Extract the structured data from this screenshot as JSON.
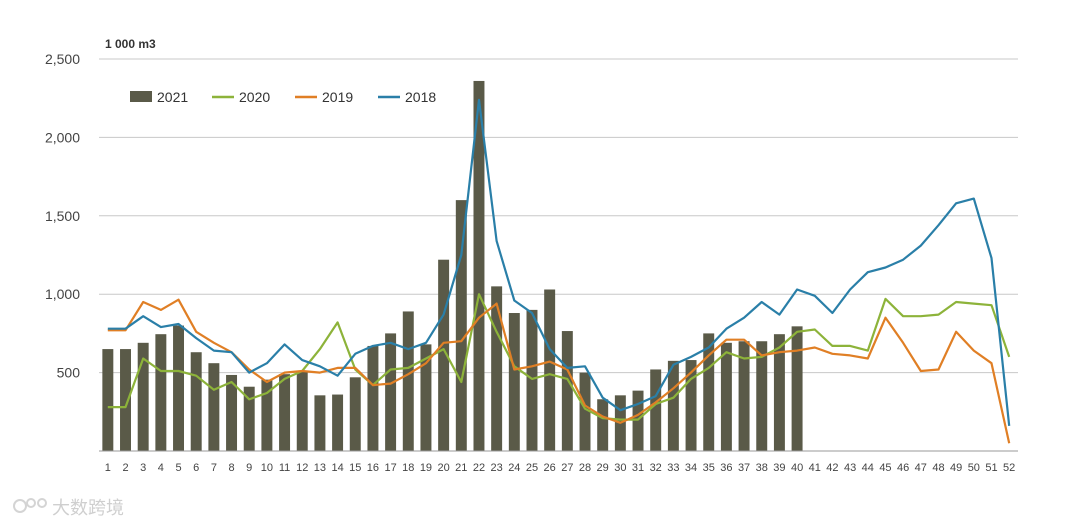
{
  "chart_data": {
    "type": "bar",
    "unit_label": "1 000 m3",
    "x": [
      1,
      2,
      3,
      4,
      5,
      6,
      7,
      8,
      9,
      10,
      11,
      12,
      13,
      14,
      15,
      16,
      17,
      18,
      19,
      20,
      21,
      22,
      23,
      24,
      25,
      26,
      27,
      28,
      29,
      30,
      31,
      32,
      33,
      34,
      35,
      36,
      37,
      38,
      39,
      40,
      41,
      42,
      43,
      44,
      45,
      46,
      47,
      48,
      49,
      50,
      51,
      52
    ],
    "ylim": [
      0,
      2500
    ],
    "yticks": [
      0,
      500,
      1000,
      1500,
      2000,
      2500
    ],
    "ytick_labels": [
      "",
      "500",
      "1,000",
      "1,500",
      "2,000",
      "2,500"
    ],
    "grid": true,
    "legend_position": "top-left",
    "series": [
      {
        "name": "2021",
        "type": "bar",
        "color": "#5a5a48",
        "values": [
          650,
          650,
          690,
          745,
          800,
          630,
          560,
          485,
          410,
          455,
          490,
          505,
          355,
          360,
          470,
          670,
          750,
          890,
          680,
          1220,
          1600,
          2360,
          1050,
          880,
          900,
          1030,
          765,
          500,
          330,
          355,
          385,
          520,
          575,
          580,
          750,
          690,
          700,
          700,
          745,
          795,
          null,
          null,
          null,
          null,
          null,
          null,
          null,
          null,
          null,
          null,
          null,
          null
        ]
      },
      {
        "name": "2020",
        "type": "line",
        "color": "#8db33a",
        "values": [
          280,
          280,
          590,
          510,
          510,
          480,
          390,
          440,
          330,
          370,
          460,
          510,
          650,
          820,
          520,
          420,
          520,
          530,
          590,
          650,
          440,
          1000,
          760,
          540,
          460,
          490,
          460,
          270,
          210,
          200,
          200,
          300,
          340,
          460,
          530,
          630,
          590,
          600,
          660,
          760,
          775,
          670,
          670,
          640,
          970,
          860,
          860,
          870,
          950,
          940,
          930,
          600
        ]
      },
      {
        "name": "2019",
        "type": "line",
        "color": "#e07f25",
        "values": [
          770,
          770,
          950,
          900,
          965,
          760,
          690,
          630,
          520,
          440,
          500,
          510,
          500,
          530,
          530,
          420,
          430,
          490,
          560,
          690,
          700,
          850,
          940,
          520,
          540,
          570,
          520,
          290,
          220,
          180,
          230,
          310,
          400,
          500,
          610,
          710,
          710,
          610,
          630,
          640,
          660,
          620,
          610,
          590,
          850,
          690,
          510,
          520,
          760,
          640,
          560,
          50
        ]
      },
      {
        "name": "2018",
        "type": "line",
        "color": "#2a7fa8",
        "values": [
          780,
          780,
          860,
          790,
          810,
          720,
          640,
          630,
          500,
          560,
          680,
          580,
          540,
          480,
          620,
          670,
          690,
          650,
          690,
          870,
          1250,
          2240,
          1340,
          960,
          880,
          650,
          530,
          540,
          340,
          260,
          300,
          350,
          550,
          600,
          660,
          780,
          850,
          950,
          870,
          1030,
          990,
          880,
          1030,
          1140,
          1170,
          1220,
          1310,
          1440,
          1580,
          1610,
          1230,
          160
        ]
      }
    ]
  },
  "watermark": {
    "text": "大数跨境"
  }
}
